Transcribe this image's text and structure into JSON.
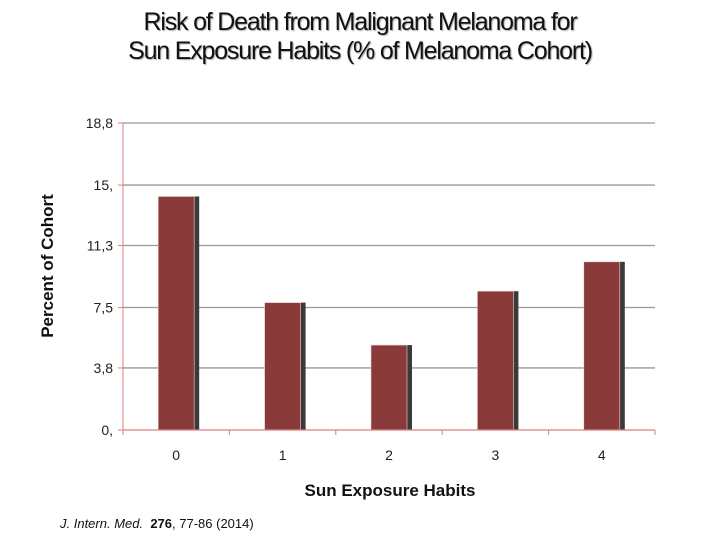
{
  "chart_data": {
    "type": "bar",
    "title_line1": "Risk of Death from Malignant Melanoma for",
    "title_line2": "Sun Exposure Habits (% of Melanoma Cohort)",
    "xlabel": "Sun Exposure Habits",
    "ylabel": "Percent of Cohort",
    "categories": [
      "0",
      "1",
      "2",
      "3",
      "4"
    ],
    "values": [
      14.3,
      7.8,
      5.2,
      8.5,
      10.3
    ],
    "ylim": [
      0,
      18.8
    ],
    "yticks": [
      0,
      3.8,
      7.5,
      11.3,
      15,
      18.8
    ],
    "ytick_labels": [
      "0,",
      "3,8",
      "7,5",
      "11,3",
      "15,",
      "18,8"
    ],
    "grid": true,
    "bar_color": "#8b3a3a",
    "axis_color": "#d98080"
  },
  "citation": {
    "journal": "J. Intern. Med.",
    "volume": "276",
    "pages_year": ", 77-86 (2014)"
  }
}
